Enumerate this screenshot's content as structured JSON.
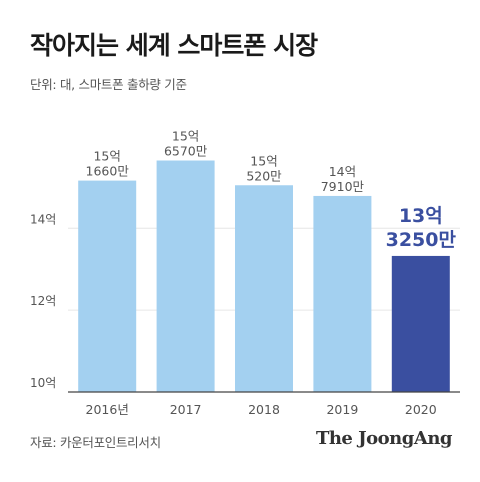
{
  "header": {
    "title": "작아지는 세계 스마트폰 시장",
    "unit_note": "단위: 대, 스마트폰 출하량 기준"
  },
  "footer": {
    "source": "자료: 카운터포인트리서치",
    "brand": "The JoongAng"
  },
  "colors": {
    "bar": "#a3d0f0",
    "highlight_bar": "#3a4fa0",
    "label": "#555555",
    "highlight_label": "#3a4fa0",
    "grid": "#e6e6e6",
    "axis": "#444444"
  },
  "chart_data": {
    "type": "bar",
    "categories": [
      "2016년",
      "2017",
      "2018",
      "2019",
      "2020"
    ],
    "values": [
      1516600000,
      1565700000,
      1505200000,
      1479100000,
      1332500000
    ],
    "data_labels": [
      [
        "15억",
        "1660만"
      ],
      [
        "15억",
        "6570만"
      ],
      [
        "15억",
        "520만"
      ],
      [
        "14억",
        "7910만"
      ],
      [
        "13억",
        "3250만"
      ]
    ],
    "highlight_index": 4,
    "yticks": [
      {
        "value": 1000000000,
        "label": "10억"
      },
      {
        "value": 1200000000,
        "label": "12억"
      },
      {
        "value": 1400000000,
        "label": "14억"
      }
    ],
    "ylim": [
      1000000000,
      1650000000
    ],
    "title": "작아지는 세계 스마트폰 시장",
    "xlabel": "",
    "ylabel": ""
  }
}
